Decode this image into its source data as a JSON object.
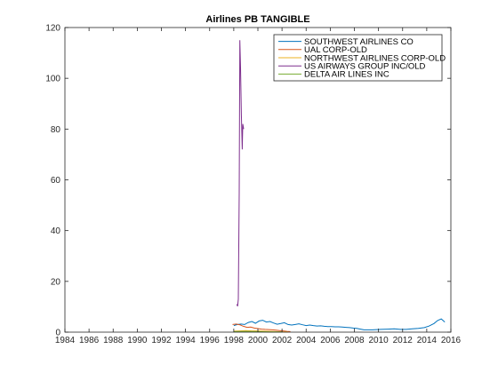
{
  "chart_data": {
    "type": "line",
    "title": "Airlines PB TANGIBLE",
    "xlabel": "",
    "ylabel": "",
    "xlim": [
      1984,
      2016
    ],
    "ylim": [
      0,
      120
    ],
    "xticks": [
      "1984",
      "1986",
      "1988",
      "1990",
      "1992",
      "1994",
      "1996",
      "1998",
      "2000",
      "2002",
      "2004",
      "2006",
      "2008",
      "2010",
      "2012",
      "2014",
      "2016"
    ],
    "yticks": [
      "0",
      "20",
      "40",
      "60",
      "80",
      "100",
      "120"
    ],
    "grid": false,
    "legend_position": "top-right",
    "series": [
      {
        "name": "SOUTHWEST AIRLINES CO",
        "color": "#0072bd",
        "x": [
          1998.0,
          1998.3,
          1998.6,
          1998.9,
          1999.2,
          1999.5,
          1999.8,
          2000.1,
          2000.4,
          2000.7,
          2001.0,
          2001.3,
          2001.6,
          2001.9,
          2002.2,
          2002.5,
          2002.8,
          2003.1,
          2003.4,
          2003.7,
          2004.0,
          2004.3,
          2004.6,
          2004.9,
          2005.2,
          2005.5,
          2005.8,
          2006.1,
          2006.4,
          2006.7,
          2007.0,
          2007.3,
          2007.6,
          2007.9,
          2008.2,
          2008.5,
          2008.8,
          2009.5,
          2010.2,
          2010.8,
          2011.3,
          2011.8,
          2012.3,
          2012.8,
          2013.3,
          2013.8,
          2014.2,
          2014.6,
          2014.9,
          2015.2,
          2015.5
        ],
        "y": [
          2.6,
          3.0,
          3.2,
          3.0,
          3.8,
          4.2,
          3.5,
          4.4,
          4.7,
          4.0,
          4.2,
          3.6,
          3.1,
          3.4,
          3.7,
          3.0,
          2.8,
          3.0,
          3.3,
          2.9,
          2.6,
          2.8,
          2.6,
          2.4,
          2.5,
          2.3,
          2.2,
          2.2,
          2.1,
          2.1,
          2.0,
          1.9,
          1.8,
          1.6,
          1.5,
          1.2,
          0.9,
          0.9,
          1.1,
          1.2,
          1.3,
          1.1,
          1.1,
          1.3,
          1.5,
          1.8,
          2.4,
          3.4,
          4.6,
          5.2,
          4.0
        ]
      },
      {
        "name": "UAL CORP-OLD",
        "color": "#d95319",
        "x": [
          1997.9,
          1998.2,
          1998.5,
          1998.8,
          1999.1,
          1999.4,
          1999.7,
          2000.0,
          2000.3,
          2000.6,
          2000.9,
          2001.2,
          2001.5,
          2001.8,
          2002.1,
          2002.4,
          2002.7
        ],
        "y": [
          3.0,
          3.2,
          2.9,
          2.3,
          1.9,
          2.0,
          1.6,
          1.4,
          1.2,
          1.1,
          1.0,
          0.9,
          0.8,
          0.6,
          0.5,
          0.3,
          0.2
        ]
      },
      {
        "name": "NORTHWEST AIRLINES CORP-OLD",
        "color": "#edb120",
        "x": [
          1998.0,
          1998.5,
          1999.0,
          1999.5,
          2000.0,
          2000.5,
          2001.0,
          2001.5,
          2002.0,
          2002.5
        ],
        "y": [
          0.4,
          0.5,
          0.6,
          0.5,
          0.5,
          0.4,
          0.3,
          0.2,
          0.1,
          0.1
        ]
      },
      {
        "name": "US AIRWAYS GROUP INC/OLD",
        "color": "#7e2f8e",
        "x": [
          1998.25,
          1998.32,
          1998.38,
          1998.45,
          1998.5,
          1998.56,
          1998.63,
          1998.7,
          1998.75,
          1998.82
        ],
        "y": [
          11,
          10.2,
          13,
          55,
          115,
          104,
          86,
          72,
          82,
          80
        ]
      },
      {
        "name": "DELTA AIR LINES INC",
        "color": "#77ac30",
        "x": [
          1998.0,
          1999.0,
          2000.0,
          2001.0,
          2002.0
        ],
        "y": [
          0.2,
          0.3,
          0.2,
          0.1,
          0.1
        ]
      }
    ]
  }
}
